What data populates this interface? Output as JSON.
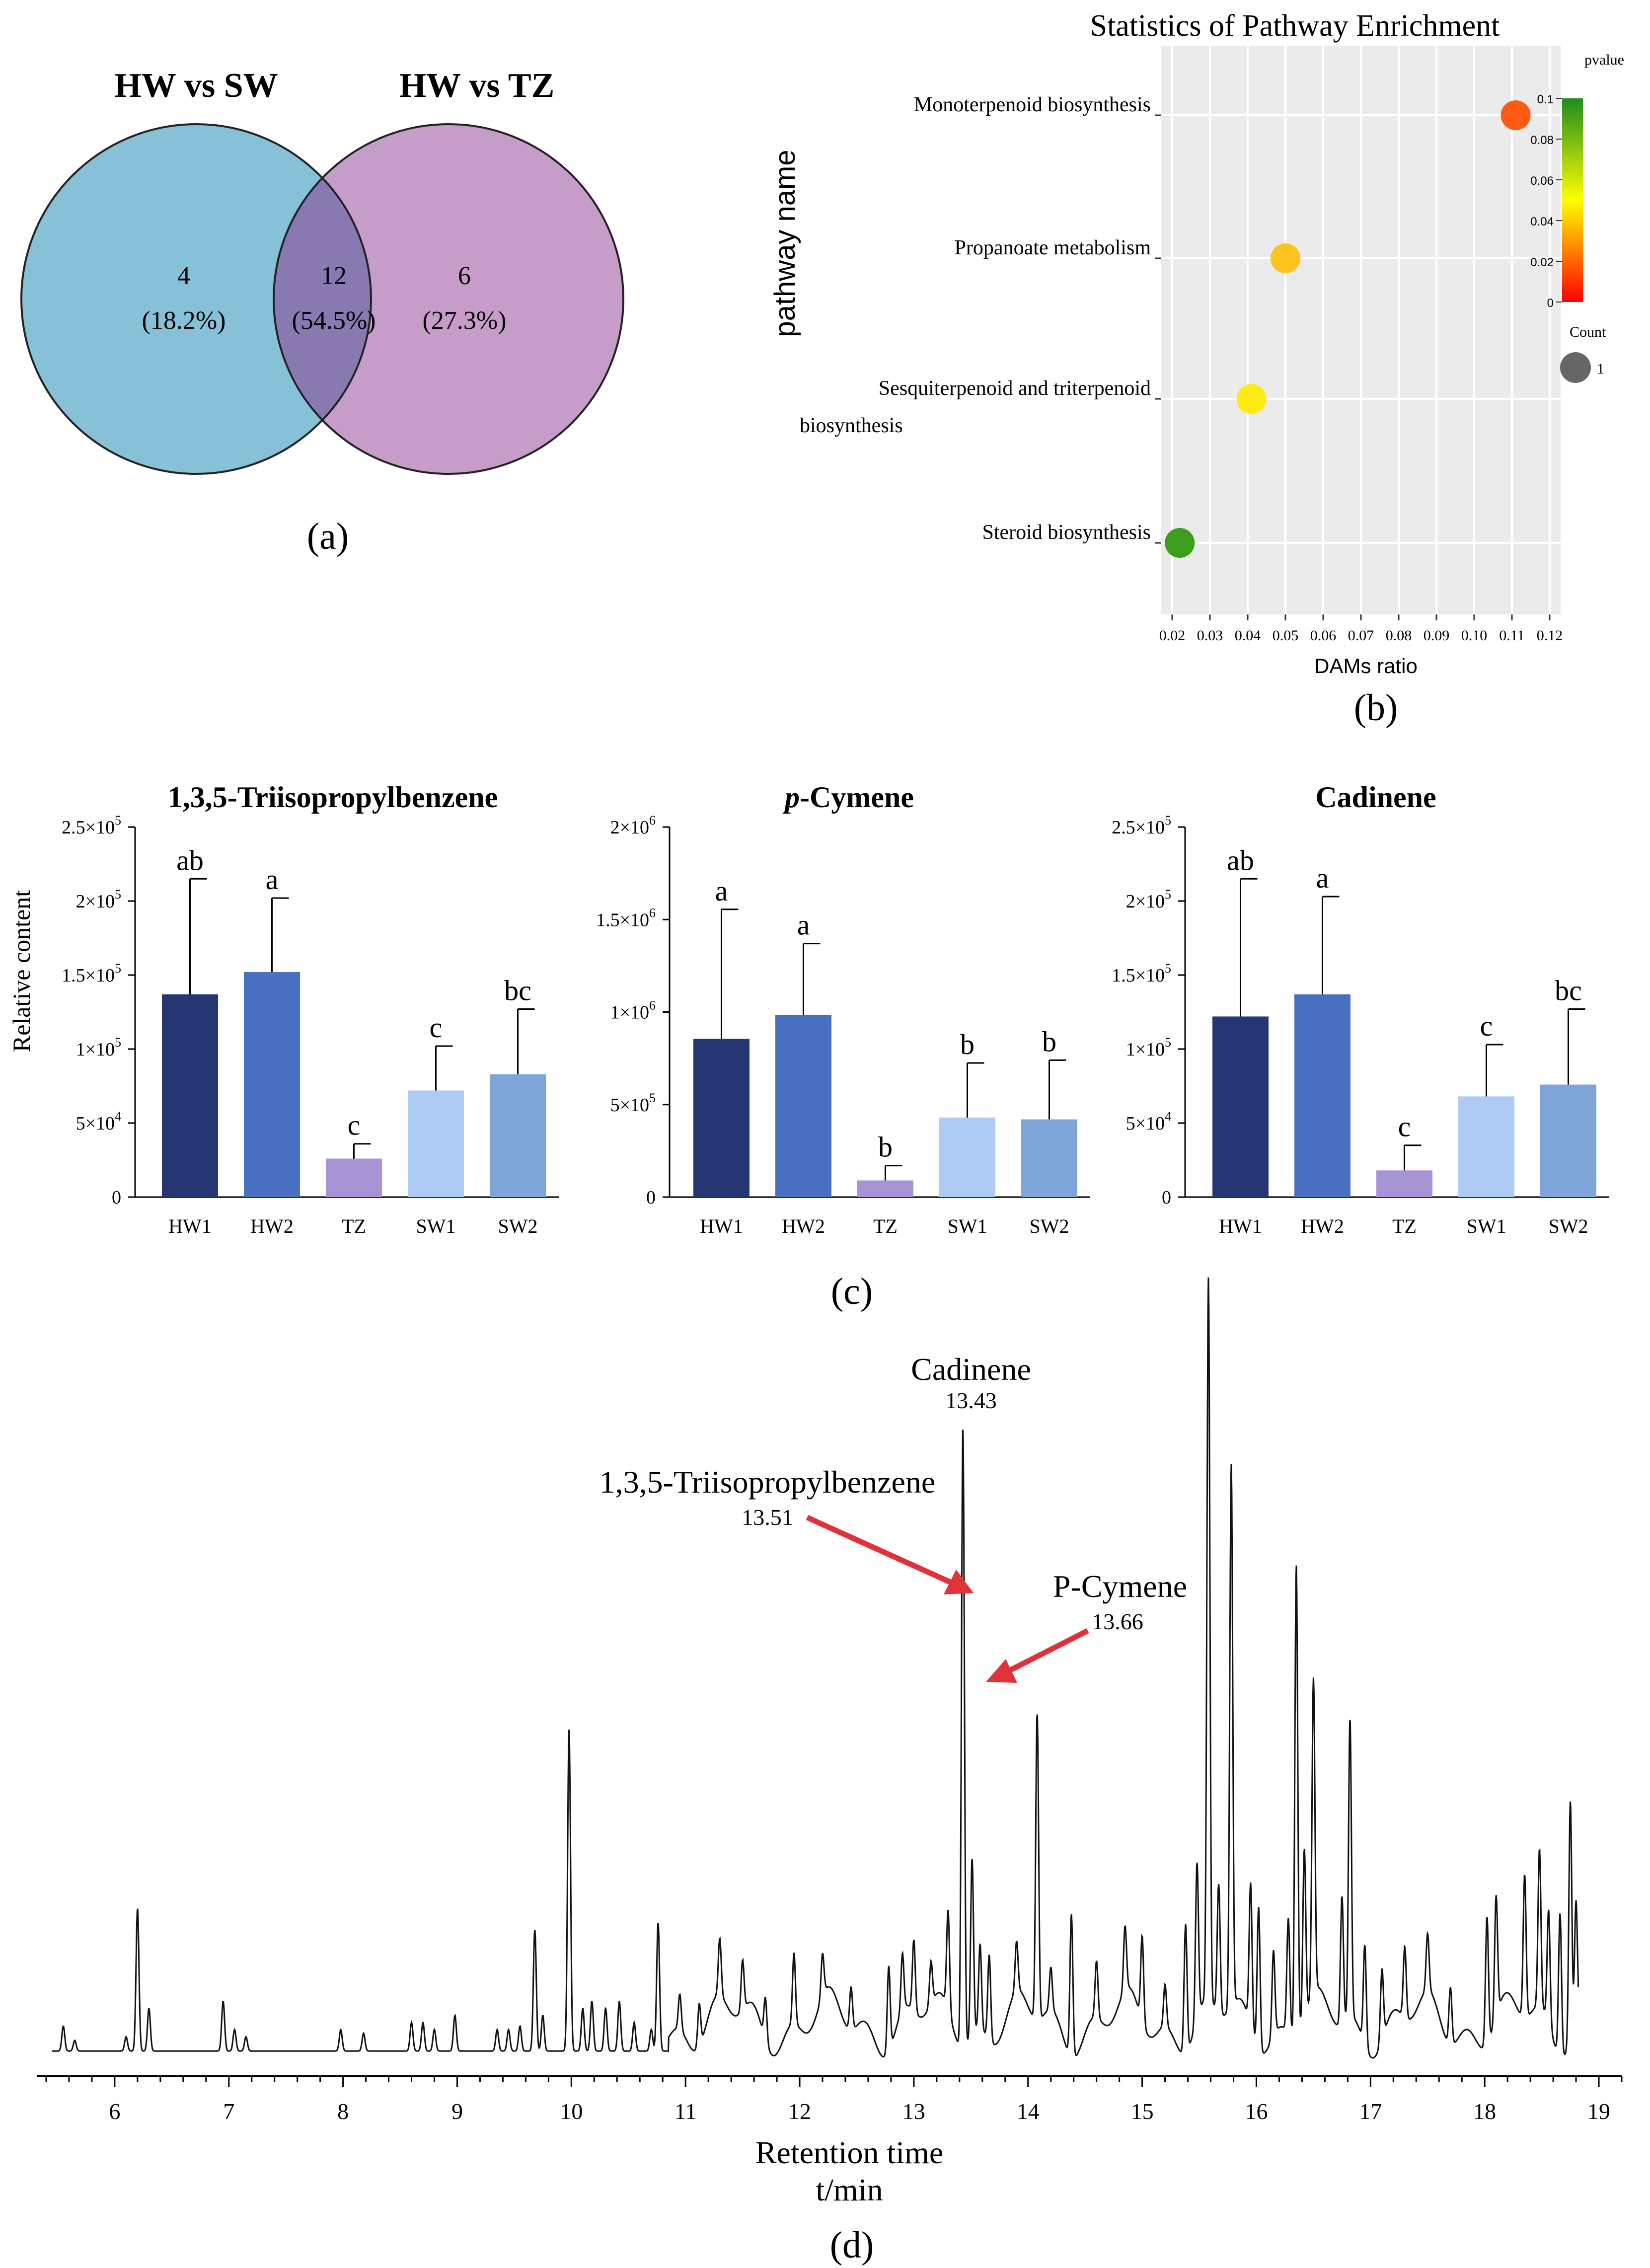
{
  "colors": {
    "venn_left": "#87C1D8",
    "venn_right": "#C69CC8",
    "venn_overlap": "#8879B1",
    "dot_grid_bg": "#EBEBEB",
    "bar_colors": [
      "#253772",
      "#4970C0",
      "#A694D7",
      "#ADCBF3",
      "#7EA4D8"
    ],
    "annotation_red": "#E0323A",
    "trace": "#111111"
  },
  "panel_labels": {
    "a": "(a)",
    "b": "(b)",
    "c": "(c)",
    "d": "(d)"
  },
  "chart_data": [
    {
      "id": "venn",
      "type": "venn",
      "sets": [
        "HW vs SW",
        "HW vs TZ"
      ],
      "regions": [
        {
          "label": "HW vs SW only",
          "count": "4",
          "percent": "(18.2%)"
        },
        {
          "label": "shared",
          "count": "12",
          "percent": "(54.5%)"
        },
        {
          "label": "HW vs TZ only",
          "count": "6",
          "percent": "(27.3%)"
        }
      ]
    },
    {
      "id": "enrichment",
      "type": "scatter",
      "title": "Statistics of Pathway Enrichment",
      "xlabel": "DAMs ratio",
      "ylabel": "pathway name",
      "xlim": [
        0.02,
        0.12
      ],
      "xticks": [
        "0.02",
        "0.03",
        "0.04",
        "0.05",
        "0.06",
        "0.07",
        "0.08",
        "0.09",
        "0.10",
        "0.11",
        "0.12"
      ],
      "pathways": [
        {
          "name_lines": [
            "Monoterpenoid biosynthesis"
          ],
          "ratio": 0.111,
          "pvalue": 0.012,
          "color": "#FF5A14"
        },
        {
          "name_lines": [
            "Propanoate metabolism"
          ],
          "ratio": 0.05,
          "pvalue": 0.035,
          "color": "#FFC31E"
        },
        {
          "name_lines": [
            "Sesquiterpenoid and triterpenoid",
            "biosynthesis"
          ],
          "ratio": 0.041,
          "pvalue": 0.045,
          "color": "#FFEB14"
        },
        {
          "name_lines": [
            "Steroid biosynthesis"
          ],
          "ratio": 0.022,
          "pvalue": 0.09,
          "color": "#3B9E1C"
        }
      ],
      "legend": {
        "color_title": "pvalue",
        "color_ticks": [
          "0.1",
          "0.08",
          "0.06",
          "0.04",
          "0.02",
          "0"
        ],
        "color_range": [
          0,
          0.1
        ],
        "size_title": "Count",
        "size_label": "1"
      }
    },
    {
      "id": "bar-triisopropylbenzene",
      "type": "bar",
      "title": "1,3,5-Triisopropylbenzene",
      "ylabel": "Relative content",
      "categories": [
        "HW1",
        "HW2",
        "TZ",
        "SW1",
        "SW2"
      ],
      "values": [
        137000,
        152000,
        26000,
        72000,
        83000
      ],
      "errors": [
        78000,
        50000,
        10000,
        30000,
        44000
      ],
      "letters": [
        "ab",
        "a",
        "c",
        "c",
        "bc"
      ],
      "ylim": [
        0,
        250000
      ],
      "yticks": [
        {
          "value": 0,
          "mant": "0",
          "exp": ""
        },
        {
          "value": 50000,
          "mant": "5×10",
          "exp": "4"
        },
        {
          "value": 100000,
          "mant": "1×10",
          "exp": "5"
        },
        {
          "value": 150000,
          "mant": "1.5×10",
          "exp": "5"
        },
        {
          "value": 200000,
          "mant": "2×10",
          "exp": "5"
        },
        {
          "value": 250000,
          "mant": "2.5×10",
          "exp": "5"
        }
      ]
    },
    {
      "id": "bar-pcymene",
      "type": "bar",
      "title_italic": "p",
      "title_rest": "-Cymene",
      "categories": [
        "HW1",
        "HW2",
        "TZ",
        "SW1",
        "SW2"
      ],
      "values": [
        855000,
        985000,
        90000,
        430000,
        420000
      ],
      "errors": [
        700000,
        385000,
        80000,
        295000,
        320000
      ],
      "letters": [
        "a",
        "a",
        "b",
        "b",
        "b"
      ],
      "ylim": [
        0,
        2000000
      ],
      "yticks": [
        {
          "value": 0,
          "mant": "0",
          "exp": ""
        },
        {
          "value": 500000,
          "mant": "5×10",
          "exp": "5"
        },
        {
          "value": 1000000,
          "mant": "1×10",
          "exp": "6"
        },
        {
          "value": 1500000,
          "mant": "1.5×10",
          "exp": "6"
        },
        {
          "value": 2000000,
          "mant": "2×10",
          "exp": "6"
        }
      ]
    },
    {
      "id": "bar-cadinene",
      "type": "bar",
      "title": "Cadinene",
      "categories": [
        "HW1",
        "HW2",
        "TZ",
        "SW1",
        "SW2"
      ],
      "values": [
        122000,
        137000,
        18000,
        68000,
        76000
      ],
      "errors": [
        93000,
        66000,
        17000,
        35000,
        51000
      ],
      "letters": [
        "ab",
        "a",
        "c",
        "c",
        "bc"
      ],
      "ylim": [
        0,
        250000
      ],
      "yticks": [
        {
          "value": 0,
          "mant": "0",
          "exp": ""
        },
        {
          "value": 50000,
          "mant": "5×10",
          "exp": "4"
        },
        {
          "value": 100000,
          "mant": "1×10",
          "exp": "5"
        },
        {
          "value": 150000,
          "mant": "1.5×10",
          "exp": "5"
        },
        {
          "value": 200000,
          "mant": "2×10",
          "exp": "5"
        },
        {
          "value": 250000,
          "mant": "2.5×10",
          "exp": "5"
        }
      ]
    },
    {
      "id": "chromatogram",
      "type": "line",
      "xlabel": "Retention time",
      "xlabel_unit": "t/min",
      "xlim": [
        5.3,
        19.2
      ],
      "xticks": [
        6,
        7,
        8,
        9,
        10,
        11,
        12,
        13,
        14,
        15,
        16,
        17,
        18,
        19
      ],
      "ylim": [
        0,
        100
      ],
      "baseline": 2,
      "peaks": [
        [
          5.55,
          3.5
        ],
        [
          5.65,
          1.5
        ],
        [
          6.1,
          2
        ],
        [
          6.2,
          20
        ],
        [
          6.3,
          6
        ],
        [
          6.95,
          7
        ],
        [
          7.05,
          3
        ],
        [
          7.15,
          2
        ],
        [
          7.98,
          3
        ],
        [
          8.18,
          2.5
        ],
        [
          8.6,
          4
        ],
        [
          8.7,
          4
        ],
        [
          8.8,
          3
        ],
        [
          8.98,
          5
        ],
        [
          9.35,
          3
        ],
        [
          9.45,
          3
        ],
        [
          9.55,
          3.5
        ],
        [
          9.68,
          17
        ],
        [
          9.75,
          5
        ],
        [
          9.98,
          45
        ],
        [
          10.1,
          6
        ],
        [
          10.18,
          7
        ],
        [
          10.3,
          6
        ],
        [
          10.42,
          7
        ],
        [
          10.55,
          4
        ],
        [
          10.7,
          3
        ],
        [
          10.76,
          18
        ],
        [
          10.95,
          5
        ],
        [
          11.12,
          6
        ],
        [
          11.3,
          8
        ],
        [
          11.5,
          7
        ],
        [
          11.7,
          6
        ],
        [
          11.95,
          10
        ],
        [
          12.2,
          6
        ],
        [
          12.45,
          6
        ],
        [
          12.78,
          12
        ],
        [
          12.9,
          8
        ],
        [
          13.0,
          10
        ],
        [
          13.15,
          6
        ],
        [
          13.3,
          14
        ],
        [
          13.43,
          87
        ],
        [
          13.51,
          25
        ],
        [
          13.58,
          12
        ],
        [
          13.66,
          12
        ],
        [
          13.9,
          7
        ],
        [
          14.08,
          43
        ],
        [
          14.2,
          6
        ],
        [
          14.38,
          20
        ],
        [
          14.6,
          8
        ],
        [
          14.85,
          9
        ],
        [
          15.0,
          12
        ],
        [
          15.2,
          6
        ],
        [
          15.38,
          18
        ],
        [
          15.48,
          22
        ],
        [
          15.58,
          101
        ],
        [
          15.67,
          18
        ],
        [
          15.78,
          76
        ],
        [
          15.95,
          20
        ],
        [
          16.02,
          20
        ],
        [
          16.15,
          12
        ],
        [
          16.28,
          16
        ],
        [
          16.35,
          66
        ],
        [
          16.42,
          24
        ],
        [
          16.5,
          44
        ],
        [
          16.75,
          18
        ],
        [
          16.82,
          42
        ],
        [
          16.95,
          14
        ],
        [
          17.1,
          10
        ],
        [
          17.3,
          10
        ],
        [
          17.5,
          8
        ],
        [
          17.7,
          8
        ],
        [
          18.02,
          18
        ],
        [
          18.1,
          17
        ],
        [
          18.35,
          20
        ],
        [
          18.48,
          22
        ],
        [
          18.56,
          16
        ],
        [
          18.66,
          20
        ],
        [
          18.75,
          34
        ],
        [
          18.8,
          18
        ]
      ],
      "annotations": [
        {
          "name": "Cadinene",
          "time": "13.43"
        },
        {
          "name": "1,3,5-Triisopropylbenzene",
          "time": "13.51"
        },
        {
          "name": "P-Cymene",
          "time": "13.66"
        }
      ]
    }
  ]
}
